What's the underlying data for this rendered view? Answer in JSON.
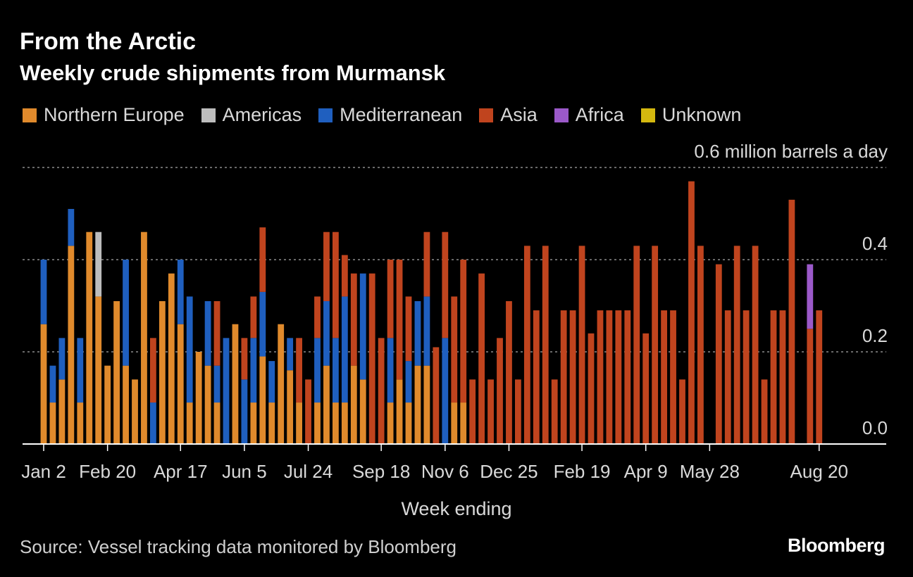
{
  "colors": {
    "background": "#000000",
    "grid": "#8c8c8c",
    "axis": "#ffffff",
    "text": "#e6e6e6"
  },
  "header": {
    "title": "From the Arctic",
    "subtitle": "Weekly crude shipments from Murmansk"
  },
  "footer": {
    "source": "Source: Vessel tracking data monitored by Bloomberg",
    "brand": "Bloomberg"
  },
  "chart_data": {
    "type": "bar",
    "stacked": true,
    "title": "From the Arctic",
    "subtitle": "Weekly crude shipments from Murmansk",
    "xlabel": "Week ending",
    "ylabel": "million barrels a day",
    "ylim": [
      0,
      0.6
    ],
    "yticks": [
      {
        "value": 0.0,
        "label": "0.0"
      },
      {
        "value": 0.2,
        "label": "0.2"
      },
      {
        "value": 0.4,
        "label": "0.4"
      },
      {
        "value": 0.6,
        "label": "0.6",
        "unit": "million barrels a day"
      }
    ],
    "xticks": [
      {
        "index": 0,
        "label": "Jan 2"
      },
      {
        "index": 7,
        "label": "Feb 20"
      },
      {
        "index": 15,
        "label": "Apr 17"
      },
      {
        "index": 22,
        "label": "Jun 5"
      },
      {
        "index": 29,
        "label": "Jul 24"
      },
      {
        "index": 37,
        "label": "Sep 18"
      },
      {
        "index": 44,
        "label": "Nov 6"
      },
      {
        "index": 51,
        "label": "Dec 25"
      },
      {
        "index": 59,
        "label": "Feb 19"
      },
      {
        "index": 66,
        "label": "Apr 9"
      },
      {
        "index": 73,
        "label": "May 28"
      },
      {
        "index": 85,
        "label": "Aug 20"
      }
    ],
    "series": [
      {
        "name": "Northern Europe",
        "color": "#e08a2c",
        "values": [
          0.26,
          0.09,
          0.14,
          0.43,
          0.09,
          0.46,
          0.32,
          0.17,
          0.31,
          0.17,
          0.14,
          0.46,
          0,
          0.31,
          0.37,
          0.26,
          0.09,
          0.2,
          0.17,
          0.09,
          0,
          0.26,
          0,
          0.09,
          0.19,
          0.09,
          0.26,
          0.16,
          0.09,
          0,
          0.09,
          0.17,
          0.09,
          0.09,
          0.17,
          0.14,
          0,
          0,
          0.09,
          0.14,
          0.09,
          0.17,
          0.17,
          0,
          0,
          0.09,
          0.09,
          0,
          0,
          0,
          0,
          0,
          0,
          0,
          0,
          0,
          0,
          0,
          0,
          0,
          0,
          0,
          0,
          0,
          0,
          0,
          0,
          0,
          0,
          0,
          0,
          0,
          0,
          0,
          0,
          0,
          0,
          0,
          0,
          0,
          0,
          0,
          0,
          0,
          0,
          0
        ]
      },
      {
        "name": "Americas",
        "color": "#bdbdbd",
        "values": [
          0,
          0,
          0,
          0,
          0,
          0,
          0.14,
          0,
          0,
          0,
          0,
          0,
          0,
          0,
          0,
          0,
          0,
          0,
          0,
          0,
          0,
          0,
          0,
          0,
          0,
          0,
          0,
          0,
          0,
          0,
          0,
          0,
          0,
          0,
          0,
          0,
          0,
          0,
          0,
          0,
          0,
          0,
          0,
          0,
          0,
          0,
          0,
          0,
          0,
          0,
          0,
          0,
          0,
          0,
          0,
          0,
          0,
          0,
          0,
          0,
          0,
          0,
          0,
          0,
          0,
          0,
          0,
          0,
          0,
          0,
          0,
          0,
          0,
          0,
          0,
          0,
          0,
          0,
          0,
          0,
          0,
          0,
          0,
          0,
          0,
          0
        ]
      },
      {
        "name": "Mediterranean",
        "color": "#1f5fbf",
        "values": [
          0.14,
          0.08,
          0.09,
          0.08,
          0.14,
          0,
          0,
          0,
          0,
          0.23,
          0,
          0,
          0.09,
          0,
          0,
          0.14,
          0.23,
          0,
          0.14,
          0.08,
          0.23,
          0,
          0.14,
          0.14,
          0.14,
          0.09,
          0,
          0.07,
          0,
          0,
          0.14,
          0.14,
          0.14,
          0.23,
          0,
          0.23,
          0,
          0,
          0.14,
          0,
          0.09,
          0.14,
          0.15,
          0,
          0.23,
          0,
          0,
          0,
          0,
          0,
          0,
          0,
          0,
          0,
          0,
          0,
          0,
          0,
          0,
          0,
          0,
          0,
          0,
          0,
          0,
          0,
          0,
          0,
          0,
          0,
          0,
          0,
          0,
          0,
          0,
          0,
          0,
          0,
          0,
          0,
          0,
          0,
          0,
          0,
          0,
          0
        ]
      },
      {
        "name": "Asia",
        "color": "#c0441e",
        "values": [
          0,
          0,
          0,
          0,
          0,
          0,
          0,
          0,
          0,
          0,
          0,
          0,
          0.14,
          0,
          0,
          0,
          0,
          0,
          0,
          0.14,
          0,
          0,
          0.09,
          0.09,
          0.14,
          0,
          0,
          0,
          0.14,
          0.14,
          0.09,
          0.15,
          0.23,
          0.09,
          0.2,
          0,
          0.37,
          0.23,
          0.17,
          0.26,
          0.14,
          0,
          0.14,
          0.21,
          0.23,
          0.23,
          0.31,
          0.14,
          0.37,
          0.14,
          0.23,
          0.31,
          0.14,
          0.43,
          0.29,
          0.43,
          0.14,
          0.29,
          0.29,
          0.43,
          0.24,
          0.29,
          0.29,
          0.29,
          0.29,
          0.43,
          0.24,
          0.43,
          0.29,
          0.29,
          0.14,
          0.57,
          0.43,
          0,
          0.39,
          0.29,
          0.43,
          0.29,
          0.43,
          0.14,
          0.29,
          0.29,
          0.53,
          0,
          0.25,
          0.29
        ]
      },
      {
        "name": "Africa",
        "color": "#9b59c9",
        "values": [
          0,
          0,
          0,
          0,
          0,
          0,
          0,
          0,
          0,
          0,
          0,
          0,
          0,
          0,
          0,
          0,
          0,
          0,
          0,
          0,
          0,
          0,
          0,
          0,
          0,
          0,
          0,
          0,
          0,
          0,
          0,
          0,
          0,
          0,
          0,
          0,
          0,
          0,
          0,
          0,
          0,
          0,
          0,
          0,
          0,
          0,
          0,
          0,
          0,
          0,
          0,
          0,
          0,
          0,
          0,
          0,
          0,
          0,
          0,
          0,
          0,
          0,
          0,
          0,
          0,
          0,
          0,
          0,
          0,
          0,
          0,
          0,
          0,
          0,
          0,
          0,
          0,
          0,
          0,
          0,
          0,
          0,
          0,
          0,
          0.14,
          0
        ]
      },
      {
        "name": "Unknown",
        "color": "#d4b80f",
        "values": [
          0,
          0,
          0,
          0,
          0,
          0,
          0,
          0,
          0,
          0,
          0,
          0,
          0,
          0,
          0,
          0,
          0,
          0,
          0,
          0,
          0,
          0,
          0,
          0,
          0,
          0,
          0,
          0,
          0,
          0,
          0,
          0,
          0,
          0,
          0,
          0,
          0,
          0,
          0,
          0,
          0,
          0,
          0,
          0,
          0,
          0,
          0,
          0,
          0,
          0,
          0,
          0,
          0,
          0,
          0,
          0,
          0,
          0,
          0,
          0,
          0,
          0,
          0,
          0,
          0,
          0,
          0,
          0,
          0,
          0,
          0,
          0,
          0,
          0,
          0,
          0,
          0,
          0,
          0,
          0,
          0,
          0,
          0,
          0,
          0,
          0
        ]
      }
    ]
  }
}
